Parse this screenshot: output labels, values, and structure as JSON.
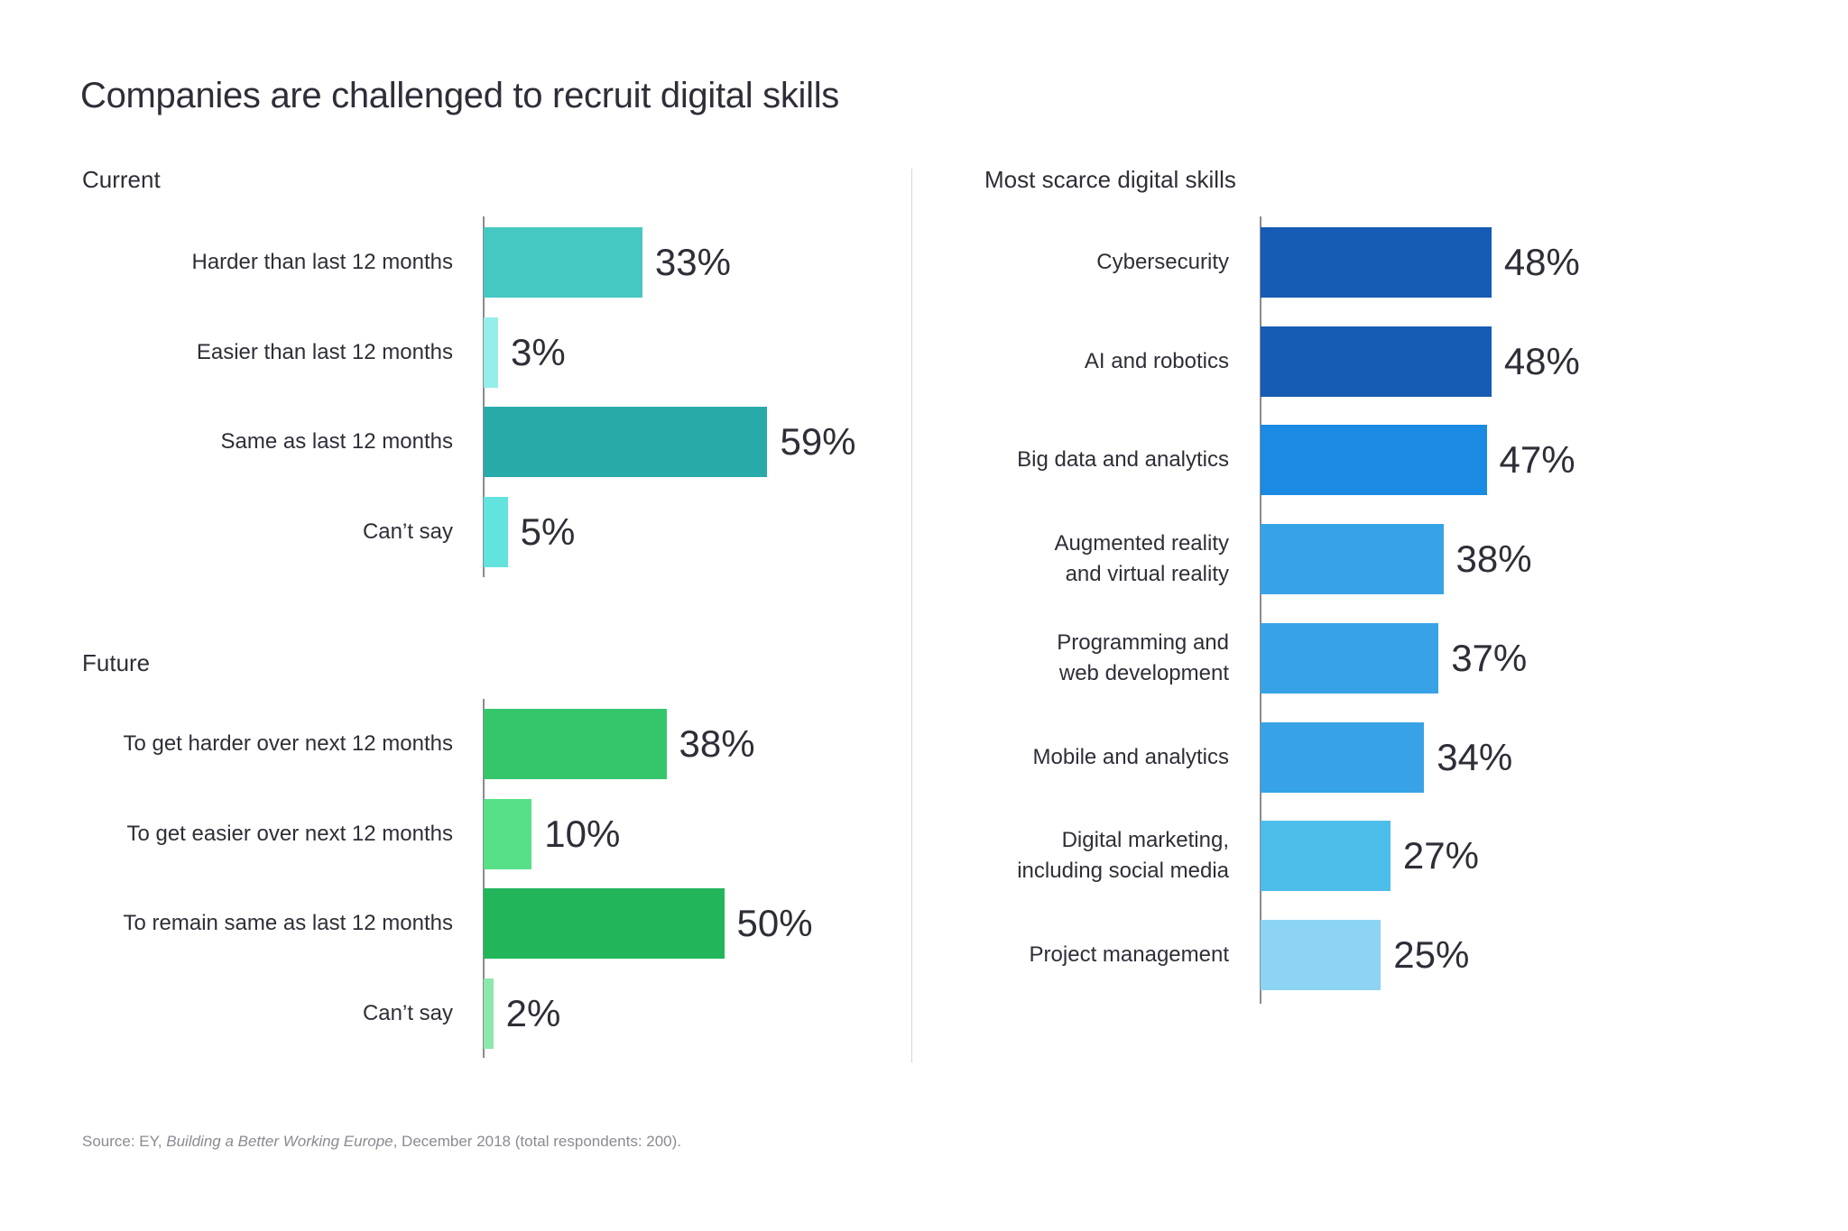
{
  "title": "Companies are challenged to recruit digital skills",
  "footer": {
    "prefix": "Source: EY, ",
    "publication": "Building a Better Working Europe",
    "suffix": ", December 2018 (total respondents: 200)."
  },
  "chart_data": [
    {
      "type": "bar",
      "orientation": "horizontal",
      "title": "Current",
      "categories": [
        "Harder than last 12 months",
        "Easier than last 12 months",
        "Same as last 12 months",
        "Can’t say"
      ],
      "values": [
        33,
        3,
        59,
        5
      ],
      "labels": [
        "33%",
        "3%",
        "59%",
        "5%"
      ],
      "colors": [
        "#45C8C1",
        "#95EEE8",
        "#28AAA9",
        "#62E3DE"
      ],
      "unit": "%",
      "xlim": [
        0,
        100
      ],
      "grid": false
    },
    {
      "type": "bar",
      "orientation": "horizontal",
      "title": "Future",
      "categories": [
        "To get harder over next 12 months",
        "To get easier over next 12 months",
        "To remain same as last 12 months",
        "Can’t say"
      ],
      "values": [
        38,
        10,
        50,
        2
      ],
      "labels": [
        "38%",
        "10%",
        "50%",
        "2%"
      ],
      "colors": [
        "#35C66B",
        "#58E088",
        "#22B55A",
        "#8DE8AC"
      ],
      "unit": "%",
      "xlim": [
        0,
        100
      ],
      "grid": false
    },
    {
      "type": "bar",
      "orientation": "horizontal",
      "title": "Most scarce digital skills",
      "categories": [
        "Cybersecurity",
        "AI and robotics",
        "Big data and analytics",
        "Augmented reality\nand virtual reality",
        "Programming and\nweb development",
        "Mobile and analytics",
        "Digital marketing,\nincluding social media",
        "Project management"
      ],
      "values": [
        48,
        48,
        47,
        38,
        37,
        34,
        27,
        25
      ],
      "labels": [
        "48%",
        "48%",
        "47%",
        "38%",
        "37%",
        "34%",
        "27%",
        "25%"
      ],
      "colors": [
        "#165BB3",
        "#165BB3",
        "#1A8AE2",
        "#37A3E6",
        "#37A3E6",
        "#37A3E6",
        "#4DBDEA",
        "#8CD4F1"
      ],
      "unit": "%",
      "xlim": [
        0,
        100
      ],
      "grid": false
    }
  ]
}
